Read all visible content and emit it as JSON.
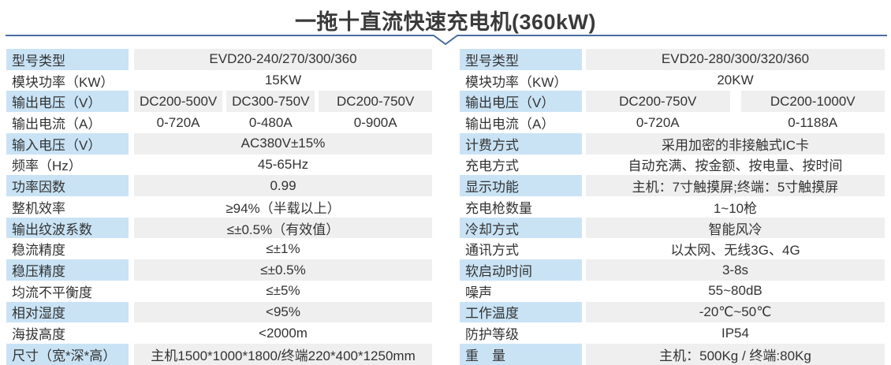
{
  "page": {
    "title": "一拖十直流快速充电机(360kW)"
  },
  "colors": {
    "divider_blue": "#4a6d9f",
    "label_cell_blue": "#c9e3f5",
    "value_cell_gray": "#efefef",
    "text": "#333333",
    "background": "#ffffff"
  },
  "left_table": {
    "rows": [
      {
        "label": "型号类型",
        "values": [
          "EVD20-240/270/300/360"
        ]
      },
      {
        "label": "模块功率（KW）",
        "values": [
          "15KW"
        ]
      },
      {
        "label": "输出电压（V）",
        "values": [
          "DC200-500V",
          "DC300-750V",
          "DC200-750V"
        ]
      },
      {
        "label": "输出电流（A）",
        "values": [
          "0-720A",
          "0-480A",
          "0-900A"
        ]
      },
      {
        "label": "输入电压（V）",
        "values": [
          "AC380V±15%"
        ]
      },
      {
        "label": "频率（Hz）",
        "values": [
          "45-65Hz"
        ]
      },
      {
        "label": "功率因数",
        "values": [
          "0.99"
        ]
      },
      {
        "label": "整机效率",
        "values": [
          "≥94%（半载以上）"
        ]
      },
      {
        "label": "输出纹波系数",
        "values": [
          "≤±0.5%（有效值）"
        ]
      },
      {
        "label": "稳流精度",
        "values": [
          "≤±1%"
        ]
      },
      {
        "label": "稳压精度",
        "values": [
          "≤±0.5%"
        ]
      },
      {
        "label": "均流不平衡度",
        "values": [
          "≤±5%"
        ]
      },
      {
        "label": "相对湿度",
        "values": [
          "<95%"
        ]
      },
      {
        "label": "海拔高度",
        "values": [
          "<2000m"
        ]
      },
      {
        "label": "尺寸（宽*深*高）",
        "values": [
          "主机1500*1000*1800/终端220*400*1250mm"
        ]
      }
    ]
  },
  "right_table": {
    "rows": [
      {
        "label": "型号类型",
        "values": [
          "EVD20-280/300/320/360"
        ]
      },
      {
        "label": "模块功率（KW）",
        "values": [
          "20KW"
        ]
      },
      {
        "label": "输出电压（V）",
        "values": [
          "DC200-750V",
          "DC200-1000V"
        ]
      },
      {
        "label": "输出电流（A）",
        "values": [
          "0-720A",
          "0-1188A"
        ]
      },
      {
        "label": "计费方式",
        "values": [
          "采用加密的非接触式IC卡"
        ]
      },
      {
        "label": "充电方式",
        "values": [
          "自动充满、按金额、按电量、按时间"
        ]
      },
      {
        "label": "显示功能",
        "values": [
          "主机：7寸触摸屏;终端：5寸触摸屏"
        ]
      },
      {
        "label": "充电枪数量",
        "values": [
          "1~10枪"
        ]
      },
      {
        "label": "冷却方式",
        "values": [
          "智能风冷"
        ]
      },
      {
        "label": "通讯方式",
        "values": [
          "以太网、无线3G、4G"
        ]
      },
      {
        "label": "软启动时间",
        "values": [
          "3-8s"
        ]
      },
      {
        "label": "噪声",
        "values": [
          "55~80dB"
        ]
      },
      {
        "label": "工作温度",
        "values": [
          "-20℃~50℃"
        ]
      },
      {
        "label": "防护等级",
        "values": [
          "IP54"
        ]
      },
      {
        "label": "重　量",
        "values": [
          "主机：500Kg / 终端:80Kg"
        ]
      }
    ]
  }
}
